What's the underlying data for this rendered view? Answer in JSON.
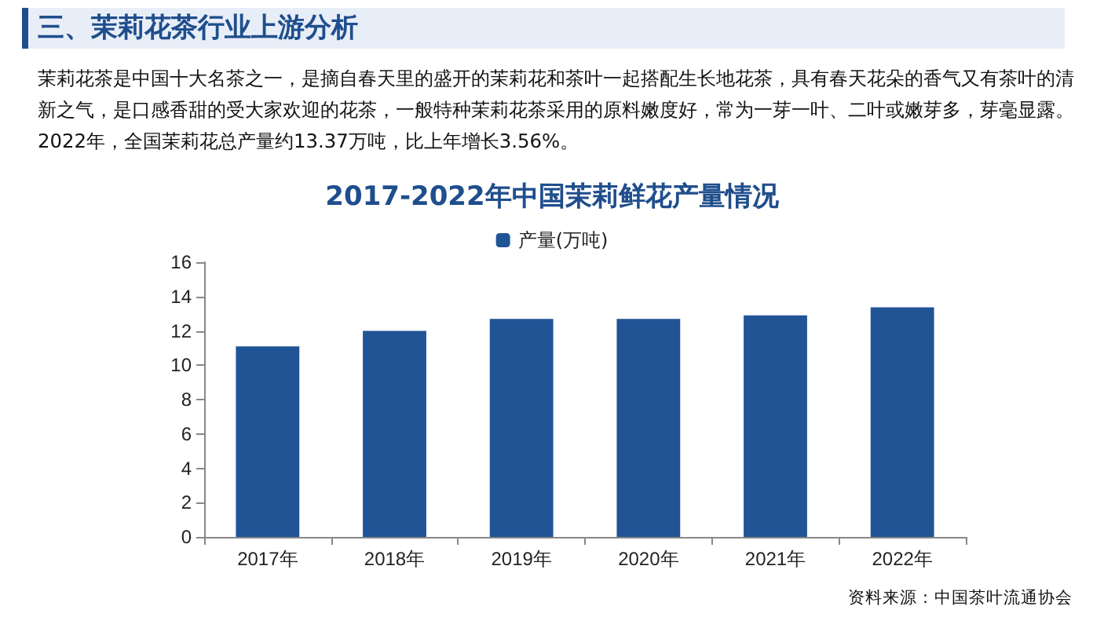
{
  "chart_data": {
    "type": "bar",
    "title": "2017-2022年中国茉莉鲜花产量情况",
    "subtitle": "三、茉莉花茶行业上游分析",
    "annotations": [
      "茉莉花茶是中国十大名茶之一，是摘自春天里的盛开的茉莉花和茶叶一起搭配生长地花茶，具有春天花朵的香气又有茶叶的清新之气，是口感香甜的受大家欢迎的花茶，一般特种茉莉花茶采用的原料嫩度好，常为一芽一叶、二叶或嫩芽多，芽毫显露。2022年，全国茉莉花总产量约13.37万吨，比上年增长3.56%。",
      "资料来源：中国茶叶流通协会"
    ],
    "categories": [
      "2017年",
      "2018年",
      "2019年",
      "2020年",
      "2021年",
      "2022年"
    ],
    "series": [
      {
        "name": "产量(万吨)",
        "color": "#215495",
        "values": [
          11.1,
          12.0,
          12.7,
          12.7,
          12.9,
          13.37
        ]
      }
    ],
    "ylim": [
      0,
      16
    ],
    "yticks": [
      0,
      2,
      4,
      6,
      8,
      10,
      12,
      14,
      16
    ],
    "grid": false,
    "legend": "top"
  }
}
